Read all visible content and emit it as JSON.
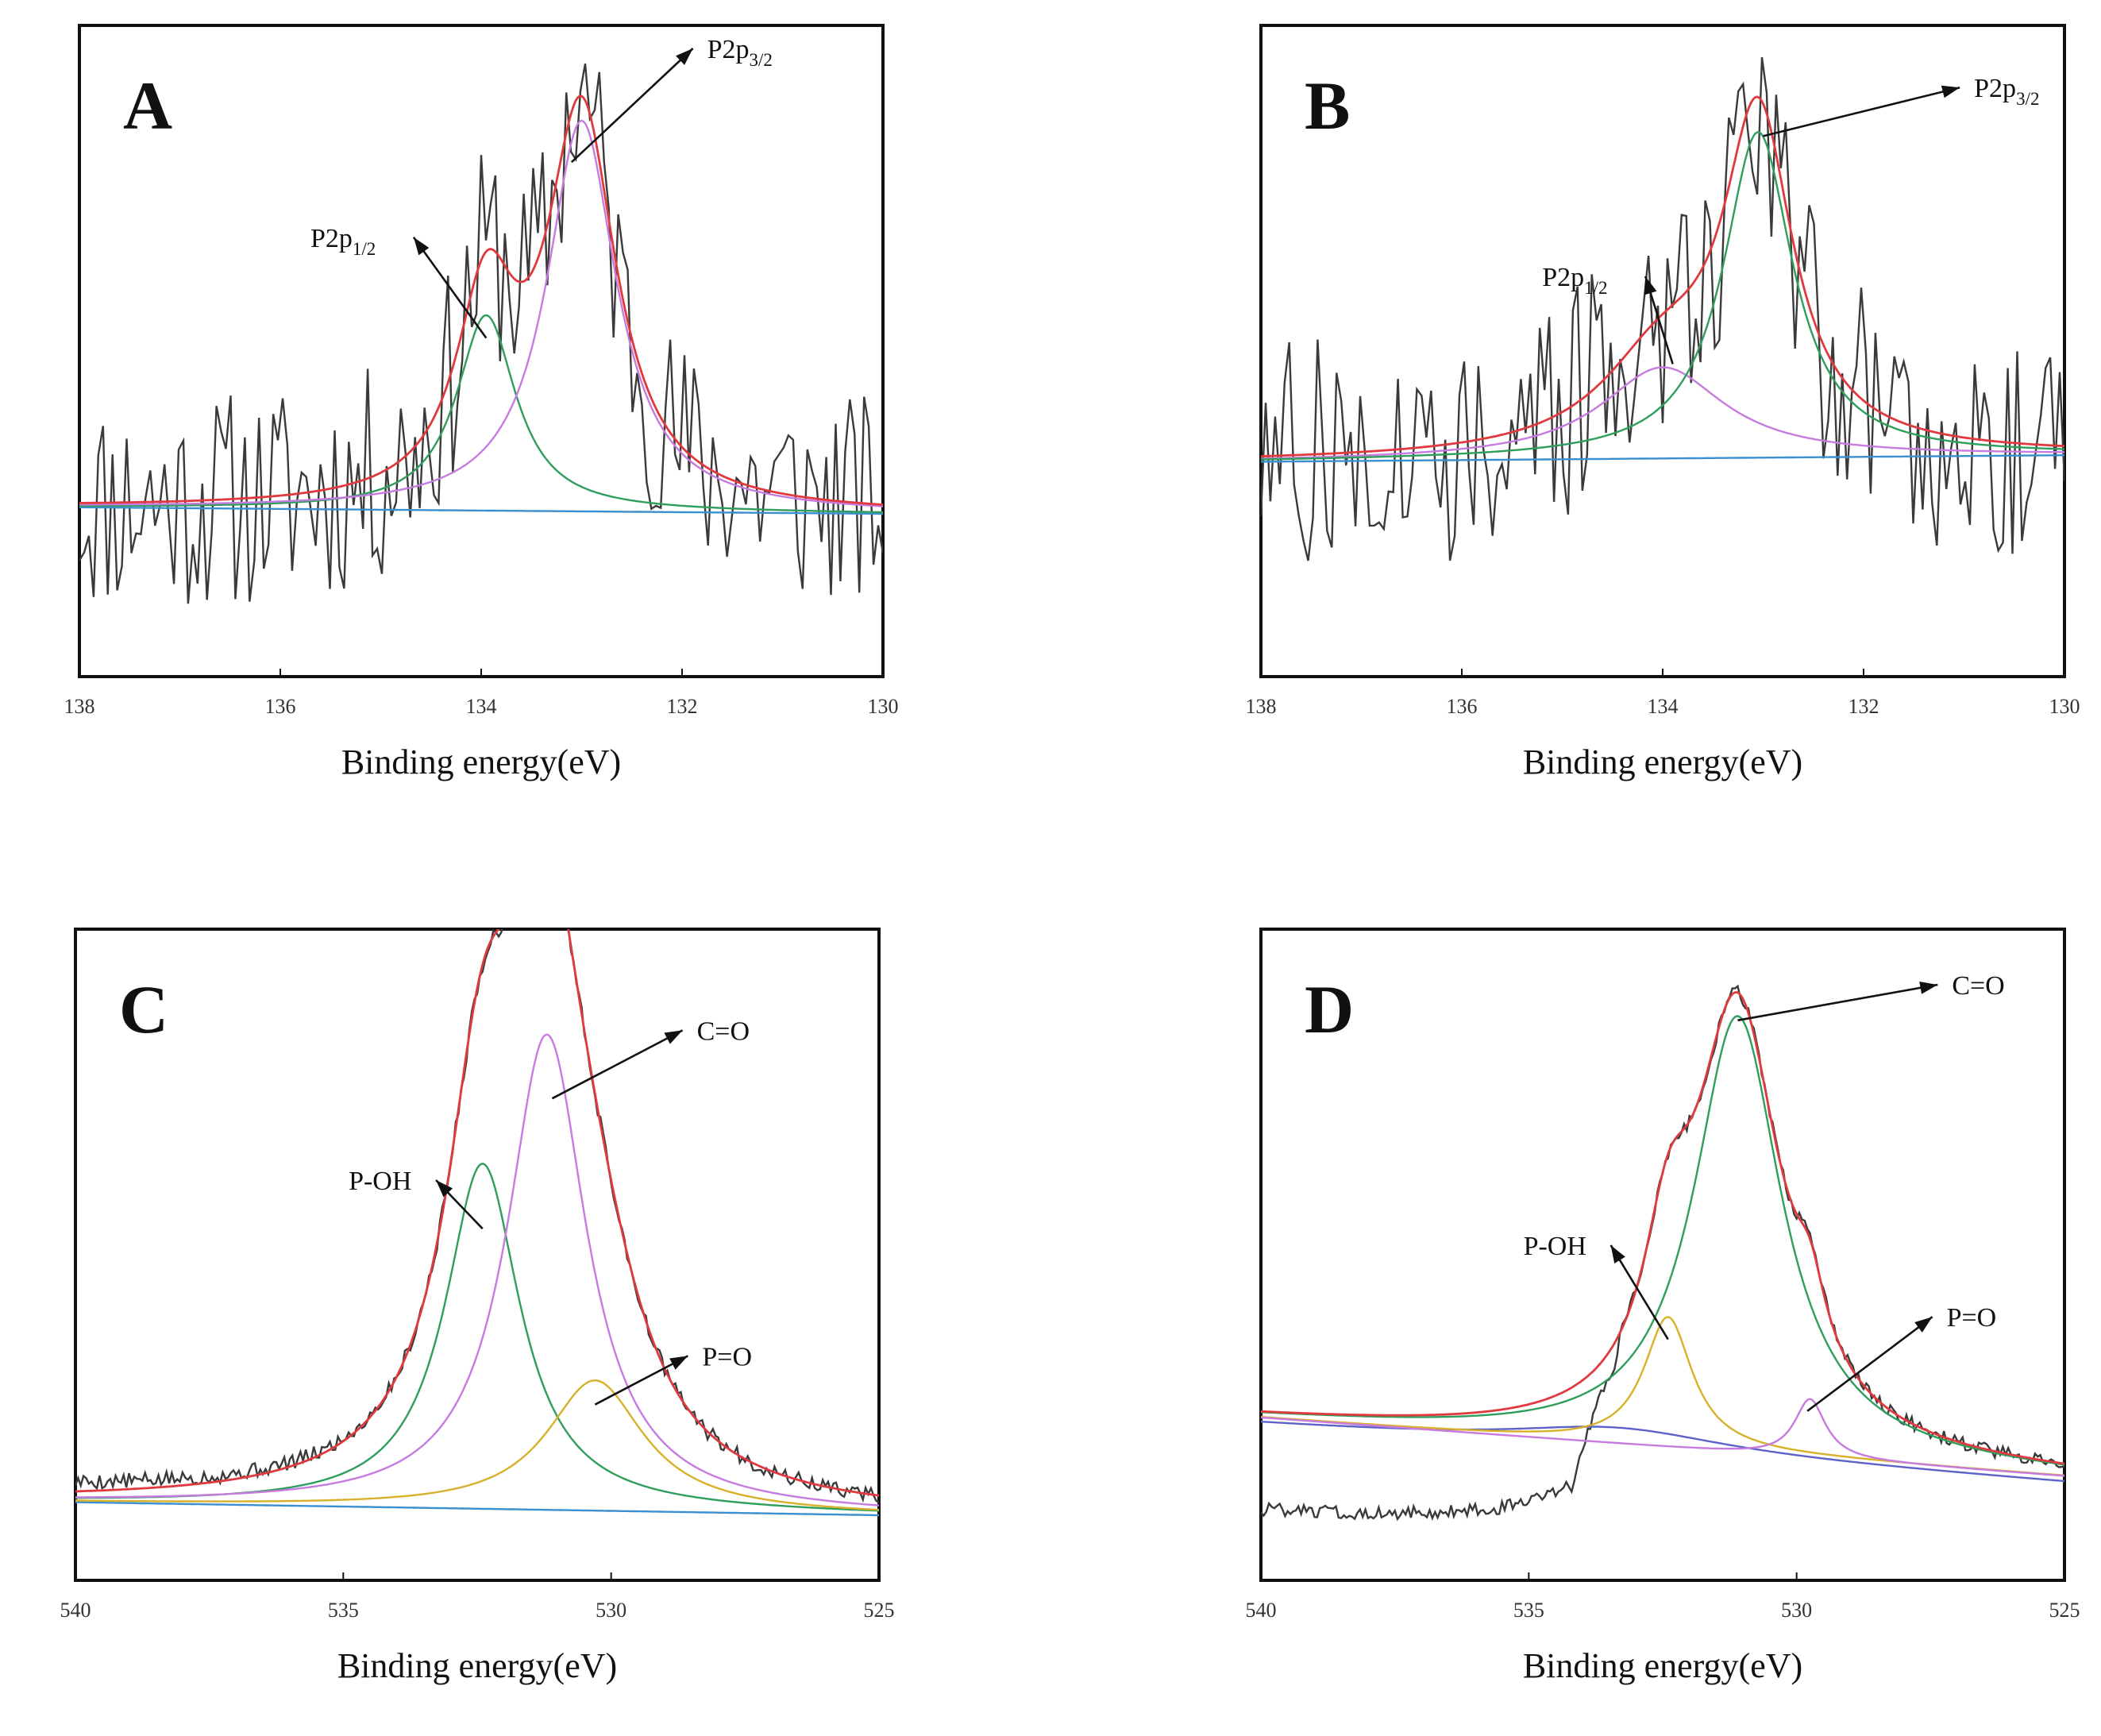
{
  "figure": {
    "panels": [
      "A",
      "B",
      "C",
      "D"
    ]
  },
  "colors": {
    "raw": "#3a3a3a",
    "envelope": "#e0393e",
    "green": "#2f9e5c",
    "purple": "#c77be0",
    "yellow": "#d8b12a",
    "baseline": "#3a8fd0",
    "baseline_alt": "#5b62c8"
  },
  "chart_data": [
    {
      "panel": "A",
      "type": "line",
      "title": "A",
      "xlabel": "Binding energy(eV)",
      "ylabel": "",
      "xlim": [
        138,
        130
      ],
      "xticks": [
        138,
        136,
        134,
        132,
        130
      ],
      "ylim": [
        0,
        1
      ],
      "baseline": [
        0.26,
        0.25
      ],
      "raw_noise": 0.17,
      "raw_seed": 11,
      "raw_n": 170,
      "peaks": [
        {
          "name": "P2p1/2",
          "color": "green",
          "center": 133.95,
          "height": 0.3,
          "width": 0.36
        },
        {
          "name": "P2p3/2",
          "color": "purple",
          "center": 133.0,
          "height": 0.6,
          "width": 0.42
        }
      ],
      "annotations": [
        {
          "text": "P2p",
          "sub": "1/2",
          "x": 135.7,
          "y": 0.66,
          "point_x": 133.95,
          "point_y": 0.52,
          "arrow_to": "text"
        },
        {
          "text": "P2p",
          "sub": "3/2",
          "x": 131.75,
          "y": 0.95,
          "point_x": 133.1,
          "point_y": 0.79,
          "arrow_to": "text"
        }
      ]
    },
    {
      "panel": "B",
      "type": "line",
      "title": "B",
      "xlabel": "Binding energy(eV)",
      "ylabel": "",
      "xlim": [
        138,
        130
      ],
      "xticks": [
        138,
        136,
        134,
        132,
        130
      ],
      "ylim": [
        0,
        1
      ],
      "baseline": [
        0.33,
        0.34
      ],
      "raw_noise": 0.18,
      "raw_seed": 27,
      "raw_n": 170,
      "peaks": [
        {
          "name": "P2p1/2",
          "color": "purple",
          "center": 134.0,
          "height": 0.14,
          "width": 0.75
        },
        {
          "name": "P2p3/2",
          "color": "green",
          "center": 133.05,
          "height": 0.5,
          "width": 0.42
        }
      ],
      "annotations": [
        {
          "text": "P2p",
          "sub": "1/2",
          "x": 135.2,
          "y": 0.6,
          "point_x": 133.9,
          "point_y": 0.48,
          "arrow_to": "text"
        },
        {
          "text": "P2p",
          "sub": "3/2",
          "x": 130.9,
          "y": 0.89,
          "point_x": 133.0,
          "point_y": 0.83,
          "arrow_to": "text"
        }
      ]
    },
    {
      "panel": "C",
      "type": "line",
      "title": "C",
      "xlabel": "Binding energy(eV)",
      "ylabel": "",
      "xlim": [
        540,
        525
      ],
      "xticks": [
        540,
        535,
        530,
        525
      ],
      "ylim": [
        0,
        1
      ],
      "baseline": [
        0.12,
        0.1
      ],
      "raw_noise": 0.012,
      "raw_seed": 5,
      "raw_n": 300,
      "peaks": [
        {
          "name": "P-OH",
          "color": "green",
          "center": 532.4,
          "height": 0.53,
          "width": 0.85
        },
        {
          "name": "C=O",
          "color": "purple",
          "center": 531.2,
          "height": 0.73,
          "width": 0.9
        },
        {
          "name": "P=O",
          "color": "yellow",
          "center": 530.3,
          "height": 0.2,
          "width": 1.1
        }
      ],
      "annotations": [
        {
          "text": "P-OH",
          "sub": "",
          "x": 534.9,
          "y": 0.6,
          "point_x": 532.4,
          "point_y": 0.54,
          "arrow_to": "text"
        },
        {
          "text": "C=O",
          "sub": "",
          "x": 528.4,
          "y": 0.83,
          "point_x": 531.1,
          "point_y": 0.74,
          "arrow_to": "text"
        },
        {
          "text": "P=O",
          "sub": "",
          "x": 528.3,
          "y": 0.33,
          "point_x": 530.3,
          "point_y": 0.27,
          "arrow_to": "text"
        }
      ]
    },
    {
      "panel": "D",
      "type": "line",
      "title": "D",
      "xlabel": "Binding energy(eV)",
      "ylabel": "",
      "xlim": [
        540,
        525
      ],
      "xticks": [
        540,
        535,
        530,
        525
      ],
      "ylim": [
        0,
        1
      ],
      "baseline": [
        0.25,
        0.16
      ],
      "raw_noise": 0.01,
      "raw_seed": 8,
      "raw_n": 300,
      "peaks": [
        {
          "name": "C=O",
          "color": "green",
          "center": 531.1,
          "height": 0.67,
          "width": 1.0
        },
        {
          "name": "P-OH",
          "color": "yellow",
          "center": 532.4,
          "height": 0.2,
          "width": 0.55
        },
        {
          "name": "P=O",
          "color": "purple",
          "center": 529.75,
          "height": 0.09,
          "width": 0.35
        }
      ],
      "annotations": [
        {
          "text": "C=O",
          "sub": "",
          "x": 527.1,
          "y": 0.9,
          "point_x": 531.1,
          "point_y": 0.86,
          "arrow_to": "text"
        },
        {
          "text": "P-OH",
          "sub": "",
          "x": 535.1,
          "y": 0.5,
          "point_x": 532.4,
          "point_y": 0.37,
          "arrow_to": "text"
        },
        {
          "text": "P=O",
          "sub": "",
          "x": 527.2,
          "y": 0.39,
          "point_x": 529.8,
          "point_y": 0.26,
          "arrow_to": "text"
        }
      ]
    }
  ]
}
